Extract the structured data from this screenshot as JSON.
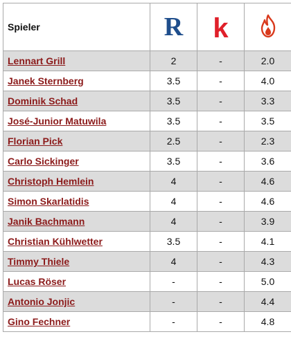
{
  "header": {
    "player_label": "Spieler",
    "logos": {
      "r": {
        "glyph": "R",
        "color": "#1f4e8c",
        "icon": "r-letter-logo-icon"
      },
      "k": {
        "glyph": "k",
        "color": "#e0202a",
        "icon": "k-letter-logo-icon"
      },
      "fire": {
        "color": "#d9391c",
        "icon": "flame-logo-icon"
      }
    }
  },
  "colors": {
    "link": "#8b1a1a",
    "shaded_row": "#dcdcdc",
    "border": "#a9a9a9"
  },
  "rows": [
    {
      "player": "Lennart Grill",
      "r": "2",
      "k": "-",
      "fire": "2.0",
      "shaded": true
    },
    {
      "player": "Janek Sternberg",
      "r": "3.5",
      "k": "-",
      "fire": "4.0",
      "shaded": false
    },
    {
      "player": "Dominik Schad",
      "r": "3.5",
      "k": "-",
      "fire": "3.3",
      "shaded": true
    },
    {
      "player": "José-Junior Matuwila",
      "r": "3.5",
      "k": "-",
      "fire": "3.5",
      "shaded": false
    },
    {
      "player": "Florian Pick",
      "r": "2.5",
      "k": "-",
      "fire": "2.3",
      "shaded": true
    },
    {
      "player": "Carlo Sickinger",
      "r": "3.5",
      "k": "-",
      "fire": "3.6",
      "shaded": false
    },
    {
      "player": "Christoph Hemlein",
      "r": "4",
      "k": "-",
      "fire": "4.6",
      "shaded": true
    },
    {
      "player": "Simon Skarlatidis",
      "r": "4",
      "k": "-",
      "fire": "4.6",
      "shaded": false
    },
    {
      "player": "Janik Bachmann",
      "r": "4",
      "k": "-",
      "fire": "3.9",
      "shaded": true
    },
    {
      "player": "Christian Kühlwetter",
      "r": "3.5",
      "k": "-",
      "fire": "4.1",
      "shaded": false
    },
    {
      "player": "Timmy Thiele",
      "r": "4",
      "k": "-",
      "fire": "4.3",
      "shaded": true
    },
    {
      "player": "Lucas Röser",
      "r": "-",
      "k": "-",
      "fire": "5.0",
      "shaded": false
    },
    {
      "player": "Antonio Jonjic",
      "r": "-",
      "k": "-",
      "fire": "4.4",
      "shaded": true
    },
    {
      "player": "Gino Fechner",
      "r": "-",
      "k": "-",
      "fire": "4.8",
      "shaded": false
    }
  ]
}
